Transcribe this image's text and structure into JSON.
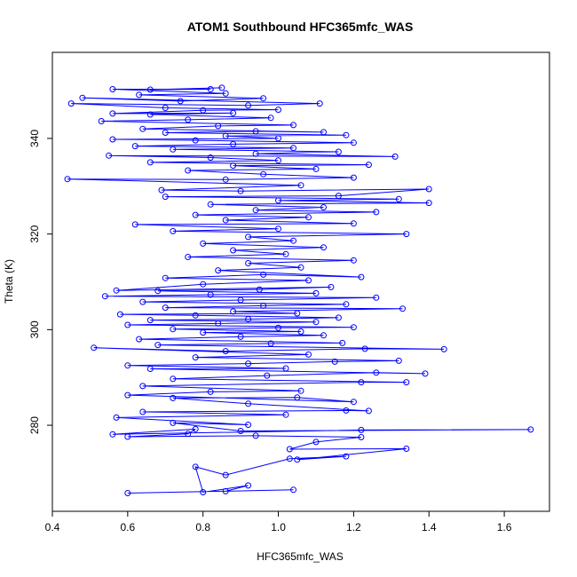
{
  "chart_data": {
    "type": "line",
    "title": "ATOM1 Southbound HFC365mfc_WAS",
    "xlabel": "HFC365mfc_WAS",
    "ylabel": "Theta (K)",
    "xlim": [
      0.4,
      1.72
    ],
    "ylim": [
      262,
      358
    ],
    "x_ticks": [
      0.4,
      0.6,
      0.8,
      1.0,
      1.2,
      1.4,
      1.6
    ],
    "x_tick_labels": [
      "0.4",
      "0.6",
      "0.8",
      "1.0",
      "1.2",
      "1.4",
      "1.6"
    ],
    "y_ticks": [
      280,
      300,
      320,
      340
    ],
    "y_tick_labels": [
      "280",
      "300",
      "320",
      "340"
    ],
    "grid": false,
    "marker": "open-circle",
    "series_color": "#0000ff",
    "series": [
      {
        "points": [
          [
            0.6,
            265.8
          ],
          [
            1.04,
            266.5
          ],
          [
            0.86,
            266.2
          ],
          [
            0.92,
            267.4
          ],
          [
            0.8,
            266.0
          ],
          [
            0.78,
            271.3
          ],
          [
            0.86,
            269.6
          ],
          [
            1.03,
            273.0
          ],
          [
            1.18,
            273.5
          ],
          [
            1.05,
            272.8
          ],
          [
            1.34,
            275.1
          ],
          [
            1.03,
            275.0
          ],
          [
            1.1,
            276.5
          ],
          [
            1.22,
            277.5
          ],
          [
            0.94,
            277.8
          ],
          [
            0.6,
            277.6
          ],
          [
            0.76,
            278.2
          ],
          [
            0.78,
            279.2
          ],
          [
            0.56,
            278.1
          ],
          [
            1.22,
            279.0
          ],
          [
            1.67,
            279.1
          ],
          [
            0.9,
            278.8
          ],
          [
            0.72,
            280.5
          ],
          [
            0.92,
            280.1
          ],
          [
            0.57,
            281.6
          ],
          [
            1.02,
            282.2
          ],
          [
            0.64,
            282.8
          ],
          [
            1.18,
            283.1
          ],
          [
            1.24,
            283.0
          ],
          [
            0.92,
            284.5
          ],
          [
            0.72,
            285.7
          ],
          [
            1.05,
            285.8
          ],
          [
            1.2,
            284.9
          ],
          [
            0.6,
            286.3
          ],
          [
            0.82,
            287.0
          ],
          [
            1.06,
            287.2
          ],
          [
            0.64,
            288.2
          ],
          [
            1.22,
            289.0
          ],
          [
            1.34,
            289.0
          ],
          [
            0.72,
            289.7
          ],
          [
            0.97,
            290.4
          ],
          [
            1.26,
            291.0
          ],
          [
            1.39,
            290.8
          ],
          [
            0.66,
            291.8
          ],
          [
            1.02,
            291.9
          ],
          [
            0.6,
            292.5
          ],
          [
            0.92,
            292.9
          ],
          [
            1.15,
            293.3
          ],
          [
            1.32,
            293.5
          ],
          [
            0.78,
            294.2
          ],
          [
            1.08,
            294.8
          ],
          [
            0.51,
            296.2
          ],
          [
            0.86,
            295.5
          ],
          [
            1.23,
            296.0
          ],
          [
            1.44,
            295.9
          ],
          [
            0.68,
            296.8
          ],
          [
            0.98,
            297.1
          ],
          [
            1.17,
            297.2
          ],
          [
            0.63,
            298.0
          ],
          [
            0.9,
            298.5
          ],
          [
            1.12,
            298.8
          ],
          [
            0.8,
            299.4
          ],
          [
            1.06,
            299.6
          ],
          [
            0.72,
            300.1
          ],
          [
            1.0,
            300.4
          ],
          [
            1.2,
            300.5
          ],
          [
            0.6,
            301.0
          ],
          [
            0.84,
            301.3
          ],
          [
            1.1,
            301.6
          ],
          [
            0.66,
            302.0
          ],
          [
            0.92,
            302.2
          ],
          [
            1.16,
            302.5
          ],
          [
            0.78,
            303.0
          ],
          [
            0.58,
            303.2
          ],
          [
            1.05,
            303.4
          ],
          [
            0.88,
            303.8
          ],
          [
            1.33,
            304.4
          ],
          [
            0.7,
            304.6
          ],
          [
            0.96,
            305.0
          ],
          [
            1.18,
            305.3
          ],
          [
            0.64,
            305.8
          ],
          [
            0.9,
            306.2
          ],
          [
            1.26,
            306.7
          ],
          [
            0.54,
            307.0
          ],
          [
            0.82,
            307.3
          ],
          [
            1.1,
            307.6
          ],
          [
            0.68,
            308.1
          ],
          [
            0.95,
            308.4
          ],
          [
            1.14,
            308.9
          ],
          [
            0.57,
            308.2
          ],
          [
            0.8,
            309.5
          ],
          [
            1.08,
            310.3
          ],
          [
            0.7,
            310.8
          ],
          [
            0.96,
            311.5
          ],
          [
            1.22,
            311.0
          ],
          [
            0.84,
            312.4
          ],
          [
            1.06,
            313.0
          ],
          [
            0.92,
            313.9
          ],
          [
            1.2,
            314.5
          ],
          [
            0.76,
            315.2
          ],
          [
            1.02,
            315.8
          ],
          [
            0.88,
            316.6
          ],
          [
            1.12,
            317.2
          ],
          [
            0.8,
            318.0
          ],
          [
            1.04,
            318.6
          ],
          [
            0.92,
            319.4
          ],
          [
            1.34,
            320.0
          ],
          [
            0.72,
            320.6
          ],
          [
            1.0,
            321.1
          ],
          [
            0.62,
            322.0
          ],
          [
            1.2,
            322.2
          ],
          [
            0.86,
            322.9
          ],
          [
            1.08,
            323.5
          ],
          [
            0.78,
            324.0
          ],
          [
            1.26,
            324.6
          ],
          [
            0.94,
            325.0
          ],
          [
            1.12,
            325.6
          ],
          [
            0.82,
            326.2
          ],
          [
            1.4,
            326.5
          ],
          [
            1.0,
            327.0
          ],
          [
            1.32,
            327.3
          ],
          [
            0.7,
            327.8
          ],
          [
            1.16,
            328.0
          ],
          [
            1.4,
            329.4
          ],
          [
            0.9,
            329.0
          ],
          [
            0.69,
            329.2
          ],
          [
            1.06,
            330.2
          ],
          [
            0.44,
            331.5
          ],
          [
            0.86,
            331.4
          ],
          [
            1.2,
            331.8
          ],
          [
            0.96,
            332.5
          ],
          [
            0.76,
            333.3
          ],
          [
            1.1,
            333.6
          ],
          [
            0.88,
            334.3
          ],
          [
            1.24,
            334.5
          ],
          [
            0.66,
            335.0
          ],
          [
            1.0,
            335.4
          ],
          [
            0.82,
            336.0
          ],
          [
            0.55,
            336.4
          ],
          [
            1.31,
            336.2
          ],
          [
            0.94,
            336.8
          ],
          [
            1.16,
            337.2
          ],
          [
            0.72,
            337.7
          ],
          [
            1.04,
            338.0
          ],
          [
            0.62,
            338.4
          ],
          [
            0.88,
            338.8
          ],
          [
            1.2,
            339.1
          ],
          [
            0.78,
            339.6
          ],
          [
            0.56,
            339.8
          ],
          [
            1.0,
            340.0
          ],
          [
            0.86,
            340.5
          ],
          [
            1.18,
            340.7
          ],
          [
            0.7,
            341.2
          ],
          [
            0.94,
            341.5
          ],
          [
            1.12,
            341.3
          ],
          [
            0.64,
            342.0
          ],
          [
            0.84,
            342.6
          ],
          [
            1.04,
            342.8
          ],
          [
            0.53,
            343.6
          ],
          [
            0.76,
            343.9
          ],
          [
            0.98,
            344.3
          ],
          [
            0.66,
            345.0
          ],
          [
            0.88,
            345.3
          ],
          [
            0.56,
            345.2
          ],
          [
            0.8,
            345.9
          ],
          [
            1.0,
            346.0
          ],
          [
            0.7,
            346.4
          ],
          [
            0.45,
            347.3
          ],
          [
            0.92,
            346.9
          ],
          [
            1.11,
            347.3
          ],
          [
            0.48,
            348.5
          ],
          [
            0.74,
            347.8
          ],
          [
            0.96,
            348.4
          ],
          [
            0.63,
            349.1
          ],
          [
            0.86,
            349.4
          ],
          [
            0.56,
            350.3
          ],
          [
            0.82,
            350.3
          ],
          [
            0.66,
            350.2
          ],
          [
            0.85,
            350.6
          ]
        ]
      }
    ]
  }
}
